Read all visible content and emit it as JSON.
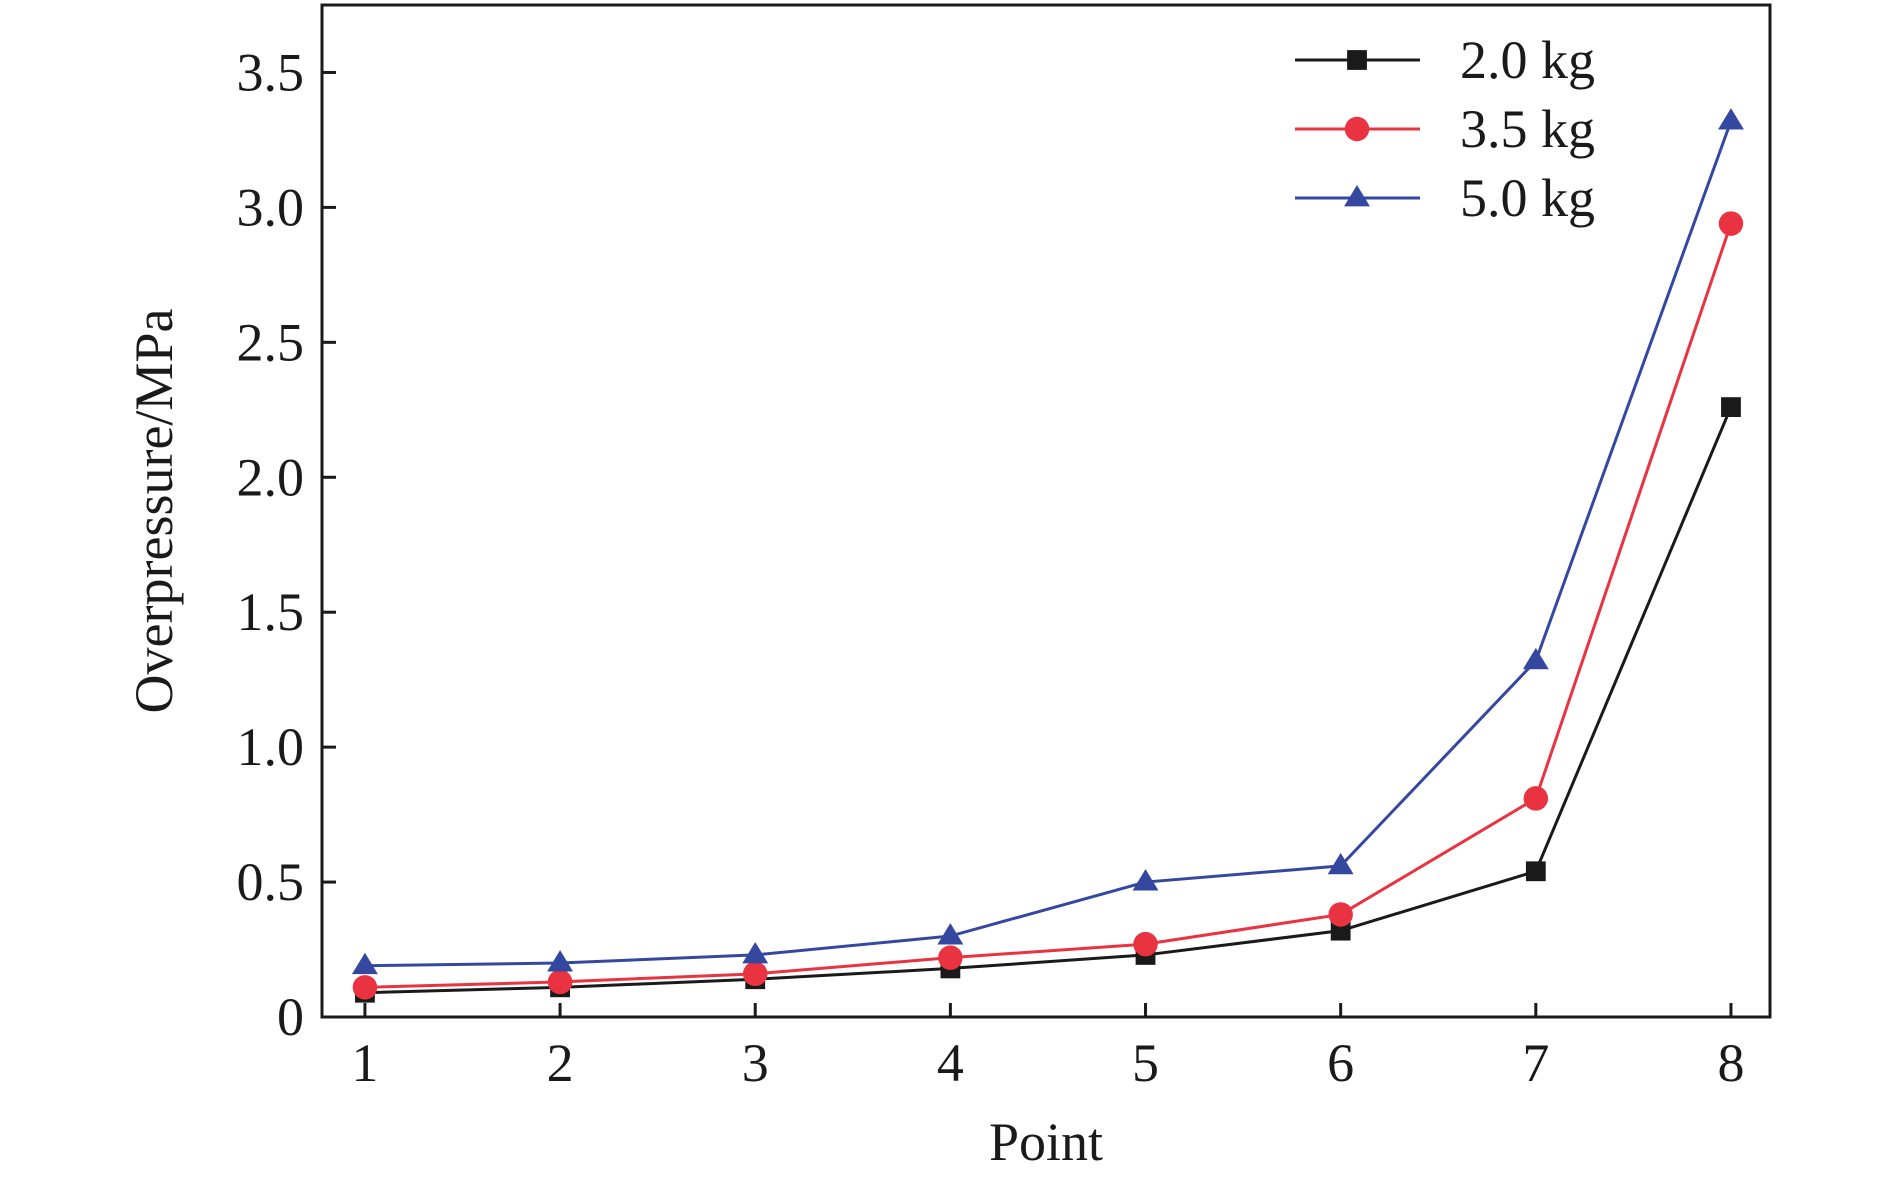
{
  "chart_data": {
    "type": "line",
    "xlabel": "Point",
    "ylabel": "Overpressure/MPa",
    "x": [
      1,
      2,
      3,
      4,
      5,
      6,
      7,
      8
    ],
    "xlim": [
      0.78,
      8.2
    ],
    "ylim": [
      0,
      3.75
    ],
    "yticks": [
      0,
      0.5,
      1.0,
      1.5,
      2.0,
      2.5,
      3.0,
      3.5
    ],
    "ytick_labels": [
      "0",
      "0.5",
      "1.0",
      "1.5",
      "2.0",
      "2.5",
      "3.0",
      "3.5"
    ],
    "xtick_labels": [
      "1",
      "2",
      "3",
      "4",
      "5",
      "6",
      "7",
      "8"
    ],
    "grid": false,
    "legend_position": "top-right",
    "series": [
      {
        "name": "2.0 kg",
        "color": "#1a1a1a",
        "marker": "square",
        "values": [
          0.09,
          0.11,
          0.14,
          0.18,
          0.23,
          0.32,
          0.54,
          2.26
        ]
      },
      {
        "name": "3.5 kg",
        "color": "#ea3340",
        "marker": "circle",
        "values": [
          0.11,
          0.13,
          0.16,
          0.22,
          0.27,
          0.38,
          0.81,
          2.94
        ]
      },
      {
        "name": "5.0 kg",
        "color": "#3548a0",
        "marker": "triangle",
        "values": [
          0.19,
          0.2,
          0.23,
          0.3,
          0.5,
          0.56,
          1.32,
          3.32
        ]
      }
    ]
  }
}
